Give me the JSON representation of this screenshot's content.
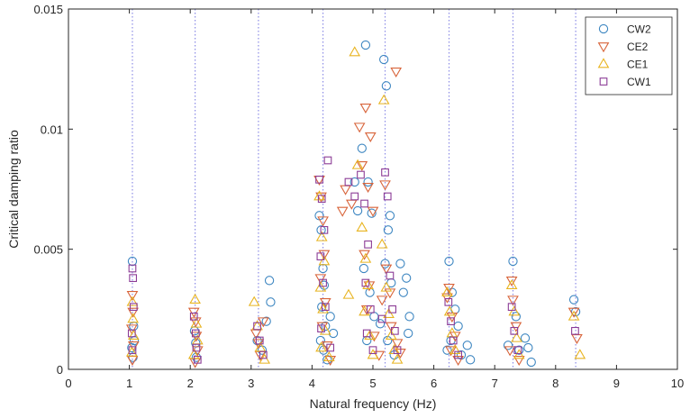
{
  "chart_data": {
    "type": "scatter",
    "title": "",
    "xlabel": "Natural frequency (Hz)",
    "ylabel": "Critical damping ratio",
    "xlim": [
      0,
      10
    ],
    "ylim": [
      0,
      0.015
    ],
    "xticks": [
      0,
      1,
      2,
      3,
      4,
      5,
      6,
      7,
      8,
      9,
      10
    ],
    "xtick_labels": [
      "0",
      "1",
      "2",
      "3",
      "4",
      "5",
      "6",
      "7",
      "8",
      "9",
      "10"
    ],
    "yticks": [
      0,
      0.005,
      0.01,
      0.015
    ],
    "ytick_labels": [
      "0",
      "0.005",
      "0.01",
      "0.015"
    ],
    "grid": false,
    "legend_position": "top-right",
    "reference_lines": {
      "style": "dotted-vertical",
      "color": "#8c8ce6",
      "x": [
        1.05,
        2.08,
        3.12,
        4.18,
        5.2,
        6.25,
        7.3,
        8.33
      ]
    },
    "series": [
      {
        "name": "CW2",
        "marker": "circle",
        "color": "#3d86c1",
        "points": [
          [
            1.05,
            0.0045
          ],
          [
            1.07,
            0.0018
          ],
          [
            1.04,
            0.0009
          ],
          [
            1.06,
            0.0005
          ],
          [
            1.08,
            0.0012
          ],
          [
            2.07,
            0.0016
          ],
          [
            2.09,
            0.0011
          ],
          [
            2.1,
            0.0005
          ],
          [
            3.1,
            0.0012
          ],
          [
            3.18,
            0.0008
          ],
          [
            3.25,
            0.002
          ],
          [
            3.3,
            0.0037
          ],
          [
            3.32,
            0.0028
          ],
          [
            4.12,
            0.0064
          ],
          [
            4.15,
            0.0058
          ],
          [
            4.18,
            0.0042
          ],
          [
            4.2,
            0.0035
          ],
          [
            4.16,
            0.0026
          ],
          [
            4.22,
            0.0018
          ],
          [
            4.14,
            0.0012
          ],
          [
            4.19,
            0.0008
          ],
          [
            4.25,
            0.0004
          ],
          [
            4.3,
            0.0022
          ],
          [
            4.35,
            0.0015
          ],
          [
            4.7,
            0.0078
          ],
          [
            4.75,
            0.0066
          ],
          [
            4.82,
            0.0092
          ],
          [
            4.88,
            0.0135
          ],
          [
            4.92,
            0.0078
          ],
          [
            4.98,
            0.0065
          ],
          [
            4.85,
            0.0042
          ],
          [
            4.95,
            0.0032
          ],
          [
            5.02,
            0.0022
          ],
          [
            4.9,
            0.0012
          ],
          [
            5.12,
            0.0019
          ],
          [
            5.18,
            0.0129
          ],
          [
            5.22,
            0.0118
          ],
          [
            5.25,
            0.0058
          ],
          [
            5.28,
            0.0064
          ],
          [
            5.2,
            0.0044
          ],
          [
            5.3,
            0.0036
          ],
          [
            5.24,
            0.0012
          ],
          [
            5.35,
            0.0006
          ],
          [
            5.45,
            0.0044
          ],
          [
            5.5,
            0.0032
          ],
          [
            5.55,
            0.0038
          ],
          [
            5.6,
            0.0022
          ],
          [
            5.58,
            0.0015
          ],
          [
            6.22,
            0.0008
          ],
          [
            6.25,
            0.0045
          ],
          [
            6.3,
            0.0032
          ],
          [
            6.35,
            0.0025
          ],
          [
            6.28,
            0.0012
          ],
          [
            6.4,
            0.0018
          ],
          [
            6.45,
            0.0006
          ],
          [
            6.55,
            0.001
          ],
          [
            6.6,
            0.0004
          ],
          [
            7.22,
            0.001
          ],
          [
            7.3,
            0.0045
          ],
          [
            7.35,
            0.0022
          ],
          [
            7.4,
            0.0008
          ],
          [
            7.5,
            0.0013
          ],
          [
            7.55,
            0.0009
          ],
          [
            7.6,
            0.0003
          ],
          [
            8.3,
            0.0029
          ],
          [
            8.33,
            0.0024
          ]
        ]
      },
      {
        "name": "CE2",
        "marker": "triangle-down",
        "color": "#d8643a",
        "points": [
          [
            1.05,
            0.0031
          ],
          [
            1.06,
            0.0024
          ],
          [
            1.04,
            0.0017
          ],
          [
            1.07,
            0.001
          ],
          [
            1.05,
            0.0004
          ],
          [
            2.06,
            0.0024
          ],
          [
            2.09,
            0.002
          ],
          [
            2.1,
            0.0014
          ],
          [
            2.12,
            0.0008
          ],
          [
            2.08,
            0.0003
          ],
          [
            3.08,
            0.0015
          ],
          [
            3.12,
            0.0011
          ],
          [
            3.2,
            0.002
          ],
          [
            3.15,
            0.0006
          ],
          [
            4.12,
            0.0079
          ],
          [
            4.15,
            0.0072
          ],
          [
            4.18,
            0.0062
          ],
          [
            4.2,
            0.0048
          ],
          [
            4.14,
            0.0038
          ],
          [
            4.22,
            0.0028
          ],
          [
            4.17,
            0.0018
          ],
          [
            4.25,
            0.001
          ],
          [
            4.3,
            0.0004
          ],
          [
            4.5,
            0.0066
          ],
          [
            4.55,
            0.0075
          ],
          [
            4.65,
            0.0069
          ],
          [
            4.78,
            0.0101
          ],
          [
            4.82,
            0.0085
          ],
          [
            4.88,
            0.0109
          ],
          [
            4.92,
            0.0076
          ],
          [
            4.96,
            0.0097
          ],
          [
            5.0,
            0.0066
          ],
          [
            4.86,
            0.0048
          ],
          [
            4.94,
            0.0035
          ],
          [
            4.9,
            0.0025
          ],
          [
            5.02,
            0.0014
          ],
          [
            5.1,
            0.0006
          ],
          [
            5.15,
            0.0029
          ],
          [
            5.2,
            0.0077
          ],
          [
            5.22,
            0.0042
          ],
          [
            5.28,
            0.0032
          ],
          [
            5.3,
            0.0018
          ],
          [
            5.38,
            0.0124
          ],
          [
            5.4,
            0.0011
          ],
          [
            5.45,
            0.0007
          ],
          [
            6.22,
            0.003
          ],
          [
            6.25,
            0.0034
          ],
          [
            6.3,
            0.0022
          ],
          [
            6.35,
            0.0014
          ],
          [
            6.28,
            0.0008
          ],
          [
            6.4,
            0.0004
          ],
          [
            7.28,
            0.0037
          ],
          [
            7.3,
            0.0029
          ],
          [
            7.35,
            0.0018
          ],
          [
            7.25,
            0.0008
          ],
          [
            7.4,
            0.0004
          ],
          [
            8.3,
            0.0024
          ],
          [
            8.35,
            0.0013
          ]
        ]
      },
      {
        "name": "CE1",
        "marker": "triangle-up",
        "color": "#e8b420",
        "points": [
          [
            1.05,
            0.0028
          ],
          [
            1.06,
            0.0021
          ],
          [
            1.07,
            0.0014
          ],
          [
            1.04,
            0.0007
          ],
          [
            2.08,
            0.0029
          ],
          [
            2.1,
            0.0019
          ],
          [
            2.12,
            0.0012
          ],
          [
            2.06,
            0.0006
          ],
          [
            3.05,
            0.0028
          ],
          [
            3.1,
            0.0018
          ],
          [
            3.15,
            0.0009
          ],
          [
            3.22,
            0.0004
          ],
          [
            4.12,
            0.0072
          ],
          [
            4.16,
            0.0055
          ],
          [
            4.2,
            0.0045
          ],
          [
            4.14,
            0.0034
          ],
          [
            4.18,
            0.0025
          ],
          [
            4.22,
            0.0016
          ],
          [
            4.15,
            0.0009
          ],
          [
            4.28,
            0.0005
          ],
          [
            4.6,
            0.0031
          ],
          [
            4.7,
            0.0132
          ],
          [
            4.75,
            0.0085
          ],
          [
            4.82,
            0.0059
          ],
          [
            4.88,
            0.0046
          ],
          [
            4.92,
            0.0035
          ],
          [
            4.86,
            0.0024
          ],
          [
            4.95,
            0.0014
          ],
          [
            5.0,
            0.0006
          ],
          [
            5.15,
            0.0052
          ],
          [
            5.18,
            0.0112
          ],
          [
            5.22,
            0.0034
          ],
          [
            5.26,
            0.0023
          ],
          [
            5.3,
            0.0014
          ],
          [
            5.35,
            0.0008
          ],
          [
            5.4,
            0.0004
          ],
          [
            6.22,
            0.0032
          ],
          [
            6.26,
            0.0024
          ],
          [
            6.3,
            0.0015
          ],
          [
            6.35,
            0.0008
          ],
          [
            7.28,
            0.0035
          ],
          [
            7.32,
            0.0024
          ],
          [
            7.36,
            0.0013
          ],
          [
            7.4,
            0.0006
          ],
          [
            8.3,
            0.0022
          ],
          [
            8.4,
            0.0006
          ]
        ]
      },
      {
        "name": "CW1",
        "marker": "square",
        "color": "#8c3c96",
        "points": [
          [
            1.05,
            0.0042
          ],
          [
            1.06,
            0.0038
          ],
          [
            1.07,
            0.0026
          ],
          [
            1.04,
            0.0015
          ],
          [
            1.05,
            0.0008
          ],
          [
            2.06,
            0.0022
          ],
          [
            2.09,
            0.0015
          ],
          [
            2.1,
            0.0009
          ],
          [
            2.12,
            0.0004
          ],
          [
            3.1,
            0.0018
          ],
          [
            3.14,
            0.0012
          ],
          [
            3.2,
            0.0006
          ],
          [
            4.12,
            0.0079
          ],
          [
            4.16,
            0.0071
          ],
          [
            4.2,
            0.0058
          ],
          [
            4.14,
            0.0047
          ],
          [
            4.18,
            0.0036
          ],
          [
            4.22,
            0.0026
          ],
          [
            4.26,
            0.0087
          ],
          [
            4.15,
            0.0017
          ],
          [
            4.3,
            0.0009
          ],
          [
            4.6,
            0.0078
          ],
          [
            4.7,
            0.0072
          ],
          [
            4.8,
            0.0081
          ],
          [
            4.86,
            0.0069
          ],
          [
            4.92,
            0.0052
          ],
          [
            4.88,
            0.0036
          ],
          [
            4.96,
            0.0025
          ],
          [
            4.9,
            0.0015
          ],
          [
            5.0,
            0.0008
          ],
          [
            5.15,
            0.0021
          ],
          [
            5.2,
            0.0082
          ],
          [
            5.24,
            0.0072
          ],
          [
            5.28,
            0.0039
          ],
          [
            5.32,
            0.0025
          ],
          [
            5.36,
            0.0016
          ],
          [
            5.4,
            0.0008
          ],
          [
            6.24,
            0.0028
          ],
          [
            6.28,
            0.002
          ],
          [
            6.32,
            0.0012
          ],
          [
            6.4,
            0.0006
          ],
          [
            7.28,
            0.0026
          ],
          [
            7.32,
            0.0016
          ],
          [
            7.38,
            0.0008
          ],
          [
            8.32,
            0.0016
          ]
        ]
      }
    ]
  }
}
